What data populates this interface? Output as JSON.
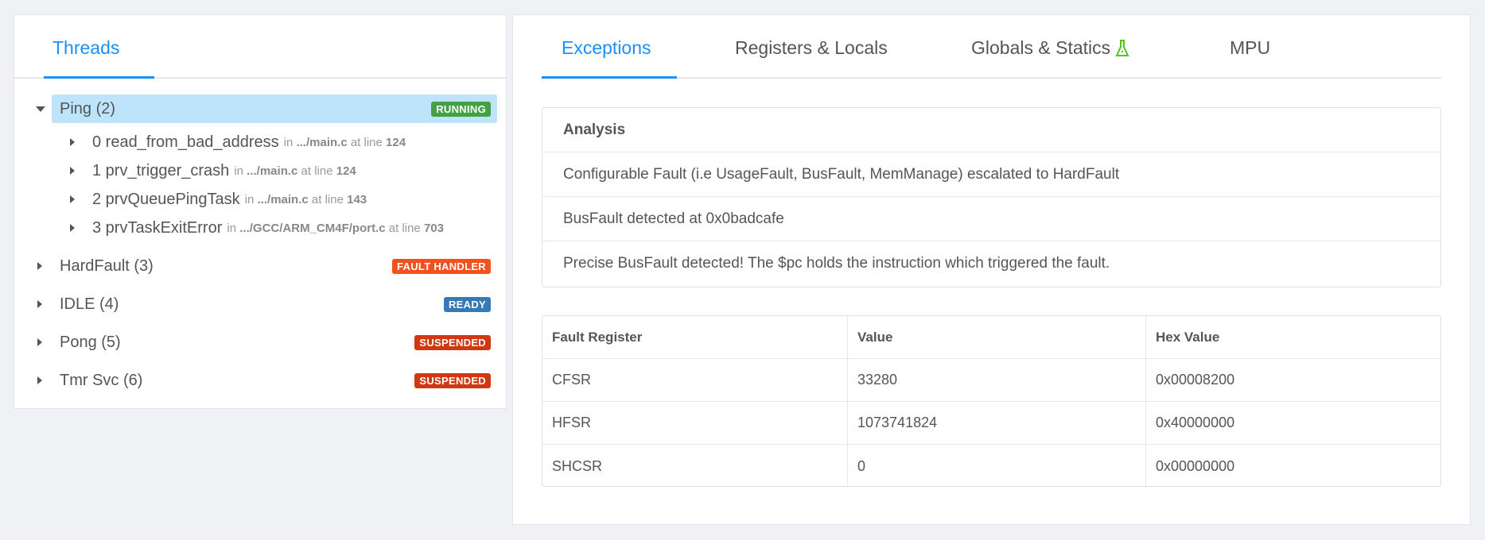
{
  "left": {
    "tab": "Threads",
    "threads": [
      {
        "name": "Ping (2)",
        "status": "RUNNING",
        "color": "#43a047",
        "expanded": true,
        "frames": [
          {
            "label": "0 read_from_bad_address",
            "in": "in",
            "file": ".../main.c",
            "at": "at line",
            "line": "124"
          },
          {
            "label": "1 prv_trigger_crash",
            "in": "in",
            "file": ".../main.c",
            "at": "at line",
            "line": "124"
          },
          {
            "label": "2 prvQueuePingTask",
            "in": "in",
            "file": ".../main.c",
            "at": "at line",
            "line": "143"
          },
          {
            "label": "3 prvTaskExitError",
            "in": "in",
            "file": ".../GCC/ARM_CM4F/port.c",
            "at": "at line",
            "line": "703"
          }
        ]
      },
      {
        "name": "HardFault (3)",
        "status": "FAULT HANDLER",
        "color": "#f4511e"
      },
      {
        "name": "IDLE (4)",
        "status": "READY",
        "color": "#337ab7"
      },
      {
        "name": "Pong (5)",
        "status": "SUSPENDED",
        "color": "#d2380f"
      },
      {
        "name": "Tmr Svc (6)",
        "status": "SUSPENDED",
        "color": "#d2380f"
      }
    ]
  },
  "right": {
    "tabs": [
      "Exceptions",
      "Registers & Locals",
      "Globals & Statics",
      "MPU"
    ],
    "active_tab": "Exceptions",
    "analysis": {
      "title": "Analysis",
      "items": [
        "Configurable Fault (i.e UsageFault, BusFault, MemManage) escalated to HardFault",
        "BusFault detected at 0x0badcafe",
        "Precise BusFault detected! The $pc holds the instruction which triggered the fault."
      ]
    },
    "table": {
      "headers": [
        "Fault Register",
        "Value",
        "Hex Value"
      ],
      "rows": [
        [
          "CFSR",
          "33280",
          "0x00008200"
        ],
        [
          "HFSR",
          "1073741824",
          "0x40000000"
        ],
        [
          "SHCSR",
          "0",
          "0x00000000"
        ]
      ]
    }
  },
  "colors": {
    "accent": "#1890ff",
    "selected_row": "#bde4fb",
    "flask_icon": "#52c41a"
  }
}
